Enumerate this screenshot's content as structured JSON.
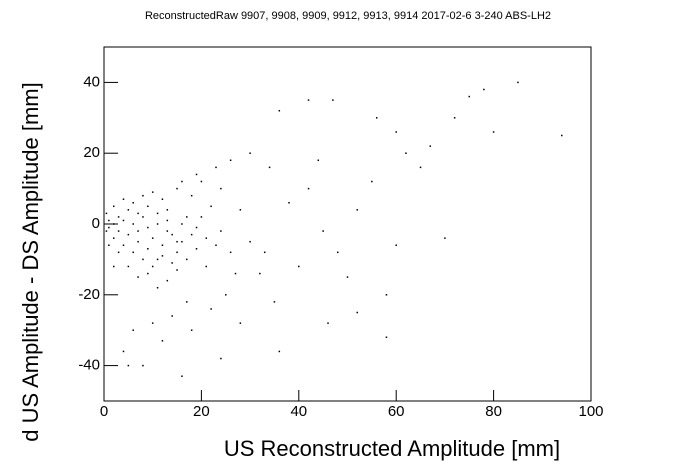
{
  "chart_data": {
    "type": "scatter",
    "title": "ReconstructedRaw 9907, 9908, 9909, 9912, 9913, 9914 2017-02-6 3-240 ABS-LH2",
    "x_label": "US Reconstructed Amplitude [mm]",
    "y_label": "d US Amplitude - DS Amplitude [mm]",
    "color": "#000000",
    "xlim": [
      0,
      100
    ],
    "xticks": [
      0,
      20,
      40,
      60,
      80,
      100
    ],
    "ylim": [
      -50,
      50
    ],
    "yticks": [
      -40,
      -20,
      0,
      20,
      40
    ],
    "x": [
      1,
      2,
      3,
      4,
      5,
      6,
      7,
      8,
      9,
      10,
      11,
      12,
      13,
      14,
      15,
      16,
      3,
      5,
      7,
      9,
      11,
      13,
      4,
      6,
      8,
      10,
      12,
      14,
      16,
      18,
      2,
      1,
      0.5,
      3,
      5,
      7,
      9,
      11,
      13,
      15,
      17,
      19,
      20,
      22,
      24,
      26,
      21,
      18,
      15,
      12,
      10,
      8,
      6,
      20,
      24,
      28,
      30,
      32,
      25,
      22,
      17,
      14,
      10,
      6,
      4,
      8,
      12,
      18,
      28,
      35,
      40,
      38,
      34,
      30,
      26,
      42,
      45,
      48,
      50,
      52,
      55,
      58,
      60,
      62,
      65,
      70,
      72,
      75,
      78,
      80,
      85,
      94,
      42,
      47,
      36,
      56,
      67,
      60,
      23,
      19,
      16,
      27,
      33,
      44,
      46,
      52,
      58,
      36,
      24,
      16,
      5,
      2,
      1,
      0.5,
      2,
      4,
      7,
      9,
      11,
      13,
      15,
      17,
      19,
      21,
      23
    ],
    "values": [
      -1,
      0,
      -2,
      1,
      -3,
      0,
      -5,
      2,
      -1,
      -4,
      0,
      -6,
      1,
      -3,
      -8,
      0,
      2,
      4,
      3,
      5,
      3,
      4,
      -6,
      -8,
      -10,
      -12,
      -9,
      -11,
      -5,
      -3,
      -4,
      1,
      -2,
      -8,
      -12,
      -15,
      -14,
      -18,
      -16,
      -13,
      -10,
      -7,
      2,
      5,
      -2,
      -8,
      -12,
      8,
      10,
      7,
      9,
      8,
      6,
      12,
      10,
      4,
      -5,
      -14,
      -20,
      -24,
      -22,
      -26,
      -28,
      -30,
      -36,
      -40,
      -33,
      -30,
      -28,
      -22,
      -12,
      6,
      16,
      20,
      18,
      10,
      -2,
      -8,
      -15,
      4,
      12,
      -20,
      -6,
      20,
      16,
      -4,
      30,
      36,
      38,
      26,
      40,
      25,
      35,
      35,
      32,
      30,
      22,
      26,
      16,
      14,
      12,
      -14,
      -8,
      18,
      -28,
      -25,
      -32,
      -36,
      -38,
      -43,
      -40,
      -12,
      -6,
      3,
      5,
      7,
      -2,
      -7,
      -10,
      -2,
      -5,
      2,
      -1,
      -4,
      -6
    ]
  }
}
